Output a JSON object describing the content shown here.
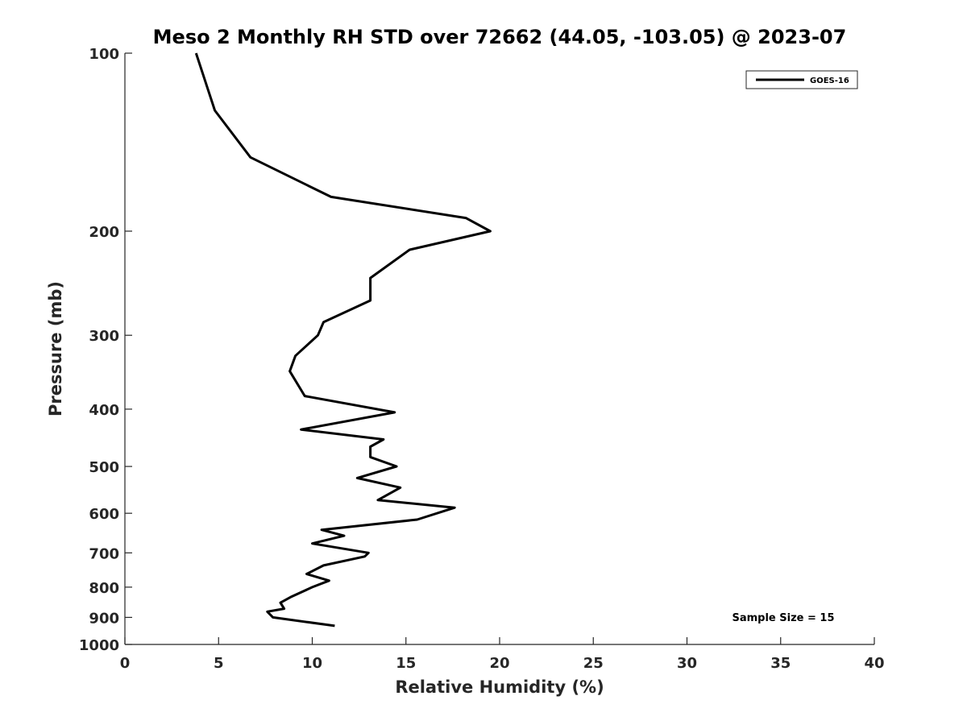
{
  "chart_data": {
    "type": "line",
    "title": "Meso 2 Monthly RH STD over 72662 (44.05, -103.05) @ 2023-07",
    "xlabel": "Relative Humidity (%)",
    "ylabel": "Pressure (mb)",
    "xlim": [
      0,
      40
    ],
    "ylim": [
      100,
      1000
    ],
    "y_scale": "log",
    "y_reversed": true,
    "xticks": [
      "0",
      "5",
      "10",
      "15",
      "20",
      "25",
      "30",
      "35",
      "40"
    ],
    "yticks": [
      "100",
      "200",
      "300",
      "400",
      "500",
      "600",
      "700",
      "800",
      "900",
      "1000"
    ],
    "grid": false,
    "legend_position": "top-right",
    "annotation": "Sample Size = 15",
    "series": [
      {
        "name": "GOES-16",
        "color": "#000000",
        "points": [
          [
            3.8,
            100
          ],
          [
            4.8,
            125
          ],
          [
            6.7,
            150
          ],
          [
            11.0,
            175
          ],
          [
            18.2,
            190
          ],
          [
            19.5,
            200
          ],
          [
            15.2,
            215
          ],
          [
            13.1,
            240
          ],
          [
            13.1,
            262
          ],
          [
            10.6,
            285
          ],
          [
            10.3,
            300
          ],
          [
            9.1,
            325
          ],
          [
            8.8,
            345
          ],
          [
            9.6,
            380
          ],
          [
            14.4,
            405
          ],
          [
            9.4,
            433
          ],
          [
            13.8,
            450
          ],
          [
            13.1,
            463
          ],
          [
            13.1,
            482
          ],
          [
            14.5,
            500
          ],
          [
            12.4,
            523
          ],
          [
            14.7,
            543
          ],
          [
            13.5,
            570
          ],
          [
            17.6,
            587
          ],
          [
            15.6,
            615
          ],
          [
            10.5,
            640
          ],
          [
            11.7,
            655
          ],
          [
            10.0,
            675
          ],
          [
            13.0,
            700
          ],
          [
            12.8,
            710
          ],
          [
            10.6,
            735
          ],
          [
            9.7,
            760
          ],
          [
            10.9,
            780
          ],
          [
            10.0,
            800
          ],
          [
            8.9,
            830
          ],
          [
            8.3,
            850
          ],
          [
            8.5,
            870
          ],
          [
            7.6,
            880
          ],
          [
            7.9,
            900
          ],
          [
            11.2,
            930
          ]
        ]
      }
    ]
  }
}
